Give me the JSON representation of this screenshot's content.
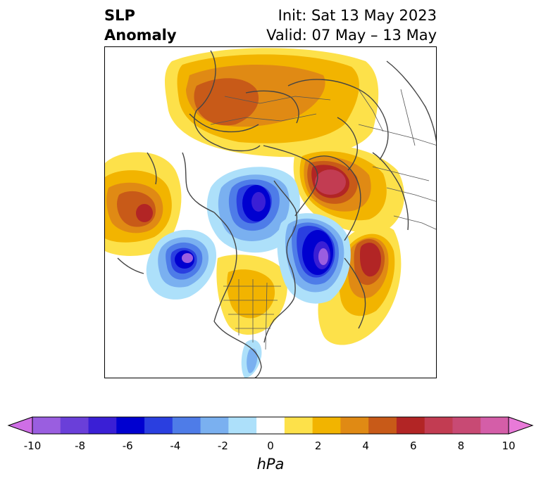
{
  "title": {
    "left_line1": "SLP",
    "left_line2": "Anomaly",
    "right_line1": "Init: Sat 13 May 2023",
    "right_line2": "Valid: 07 May – 13 May"
  },
  "colorbar": {
    "unit": "hPa",
    "ticks": [
      "-10",
      "-8",
      "-6",
      "-4",
      "-2",
      "0",
      "2",
      "4",
      "6",
      "8",
      "10"
    ],
    "colors": [
      "#cf6ee6",
      "#9a5ee0",
      "#6a3fd9",
      "#3a1fd5",
      "#0000d0",
      "#2a3fe0",
      "#4e7ce8",
      "#7ab0f0",
      "#ade0fa",
      "#ffffff",
      "#fde14a",
      "#f2b400",
      "#e08a14",
      "#c85a18",
      "#b22525",
      "#c23c52",
      "#c84a74",
      "#d45ea8",
      "#e87ad8"
    ]
  },
  "map": {
    "projection": "north-polar-stereographic",
    "features": [
      "coastlines",
      "country-borders",
      "us-state-borders",
      "canada-province-borders"
    ]
  }
}
